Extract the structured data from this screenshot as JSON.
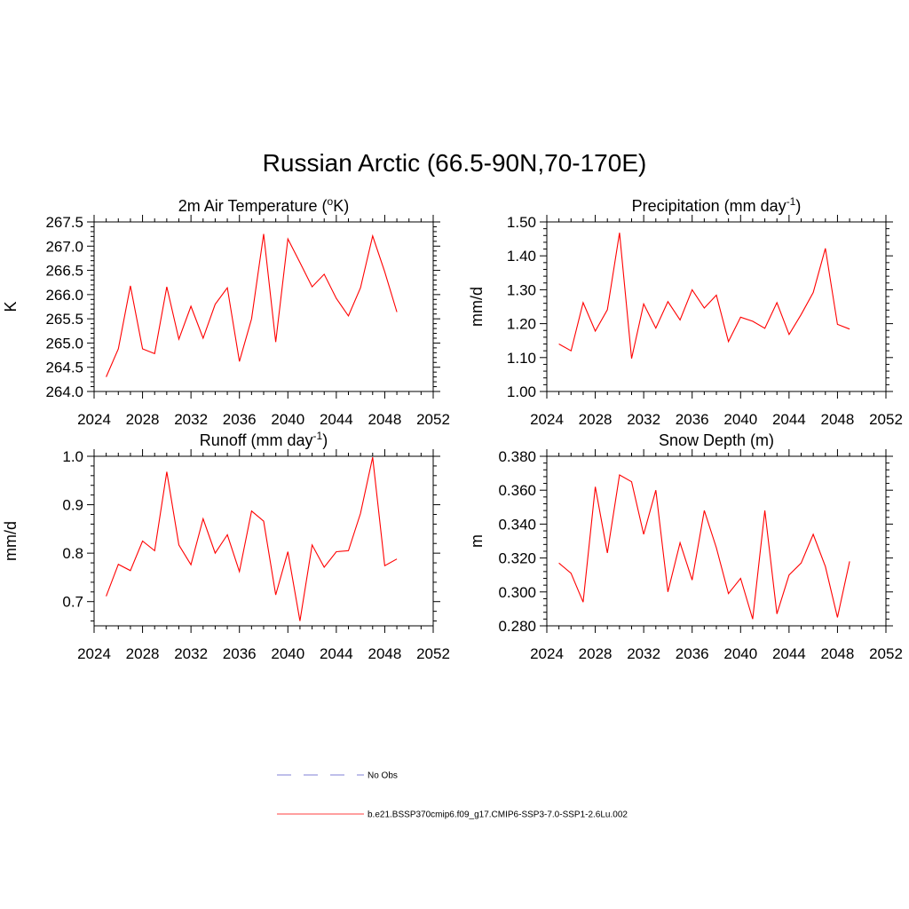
{
  "title": "Russian Arctic (66.5-90N,70-170E)",
  "legend": [
    {
      "label": "No Obs",
      "color": "#9999dd",
      "style": "dashed"
    },
    {
      "label": "b.e21.BSSP370cmip6.f09_g17.CMIP6-SSP3-7.0-SSP1-2.6Lu.002",
      "color": "#ff6666",
      "style": "solid"
    }
  ],
  "chart_data": [
    {
      "type": "line",
      "title_main": "2m Air Temperature (",
      "title_sup": "o",
      "title_rest": "K)",
      "ylabel": "K",
      "xlim": [
        2024,
        2052
      ],
      "xticks": [
        "2024",
        "2028",
        "2032",
        "2036",
        "2040",
        "2044",
        "2048",
        "2052"
      ],
      "ylim": [
        264.0,
        267.5
      ],
      "yticks": [
        "264.0",
        "264.5",
        "265.0",
        "265.5",
        "266.0",
        "266.5",
        "267.0",
        "267.5"
      ],
      "series": [
        {
          "color": "#ff0000",
          "x": [
            2025,
            2026,
            2027,
            2028,
            2029,
            2030,
            2031,
            2032,
            2033,
            2034,
            2035,
            2036,
            2037,
            2038,
            2039,
            2040,
            2041,
            2042,
            2043,
            2044,
            2045,
            2046,
            2047,
            2048,
            2049
          ],
          "values": [
            264.3,
            264.88,
            266.18,
            264.88,
            264.78,
            266.16,
            265.08,
            265.76,
            265.1,
            265.8,
            266.14,
            264.62,
            265.5,
            267.25,
            265.02,
            267.15,
            266.66,
            266.16,
            266.42,
            265.92,
            265.56,
            266.14,
            267.21,
            266.47,
            265.64
          ]
        }
      ]
    },
    {
      "type": "line",
      "title_main": "Precipitation (mm day",
      "title_sup": "-1",
      "title_rest": ")",
      "ylabel": "mm/d",
      "xlim": [
        2024,
        2052
      ],
      "xticks": [
        "2024",
        "2028",
        "2032",
        "2036",
        "2040",
        "2044",
        "2048",
        "2052"
      ],
      "ylim": [
        1.0,
        1.5
      ],
      "yticks": [
        "1.00",
        "1.10",
        "1.20",
        "1.30",
        "1.40",
        "1.50"
      ],
      "series": [
        {
          "color": "#ff0000",
          "x": [
            2025,
            2026,
            2027,
            2028,
            2029,
            2030,
            2031,
            2032,
            2033,
            2034,
            2035,
            2036,
            2037,
            2038,
            2039,
            2040,
            2041,
            2042,
            2043,
            2044,
            2045,
            2046,
            2047,
            2048,
            2049
          ],
          "values": [
            1.14,
            1.12,
            1.262,
            1.178,
            1.241,
            1.468,
            1.097,
            1.258,
            1.187,
            1.265,
            1.211,
            1.3,
            1.246,
            1.284,
            1.147,
            1.219,
            1.207,
            1.186,
            1.262,
            1.168,
            1.227,
            1.292,
            1.422,
            1.198,
            1.184
          ]
        }
      ]
    },
    {
      "type": "line",
      "title_main": "Runoff (mm day",
      "title_sup": "-1",
      "title_rest": ")",
      "ylabel": "mm/d",
      "xlim": [
        2024,
        2052
      ],
      "xticks": [
        "2024",
        "2028",
        "2032",
        "2036",
        "2040",
        "2044",
        "2048",
        "2052"
      ],
      "ylim": [
        0.65,
        1.0
      ],
      "yticks": [
        "0.7",
        "0.8",
        "0.9",
        "1.0"
      ],
      "ytick_values": [
        0.7,
        0.8,
        0.9,
        1.0
      ],
      "series": [
        {
          "color": "#ff0000",
          "x": [
            2025,
            2026,
            2027,
            2028,
            2029,
            2030,
            2031,
            2032,
            2033,
            2034,
            2035,
            2036,
            2037,
            2038,
            2039,
            2040,
            2041,
            2042,
            2043,
            2044,
            2045,
            2046,
            2047,
            2048,
            2049
          ],
          "values": [
            0.711,
            0.777,
            0.764,
            0.825,
            0.805,
            0.968,
            0.817,
            0.776,
            0.871,
            0.8,
            0.838,
            0.762,
            0.887,
            0.866,
            0.714,
            0.803,
            0.66,
            0.817,
            0.771,
            0.803,
            0.805,
            0.882,
            0.998,
            0.774,
            0.788
          ]
        }
      ]
    },
    {
      "type": "line",
      "title_main": "Snow Depth (m)",
      "title_sup": "",
      "title_rest": "",
      "ylabel": "m",
      "xlim": [
        2024,
        2052
      ],
      "xticks": [
        "2024",
        "2028",
        "2032",
        "2036",
        "2040",
        "2044",
        "2048",
        "2052"
      ],
      "ylim": [
        0.28,
        0.38
      ],
      "yticks": [
        "0.280",
        "0.300",
        "0.320",
        "0.340",
        "0.360",
        "0.380"
      ],
      "series": [
        {
          "color": "#ff0000",
          "x": [
            2025,
            2026,
            2027,
            2028,
            2029,
            2030,
            2031,
            2032,
            2033,
            2034,
            2035,
            2036,
            2037,
            2038,
            2039,
            2040,
            2041,
            2042,
            2043,
            2044,
            2045,
            2046,
            2047,
            2048,
            2049
          ],
          "values": [
            0.317,
            0.311,
            0.294,
            0.362,
            0.323,
            0.369,
            0.365,
            0.334,
            0.36,
            0.3,
            0.329,
            0.307,
            0.348,
            0.326,
            0.299,
            0.308,
            0.284,
            0.348,
            0.287,
            0.31,
            0.317,
            0.334,
            0.315,
            0.285,
            0.318
          ]
        }
      ]
    }
  ]
}
